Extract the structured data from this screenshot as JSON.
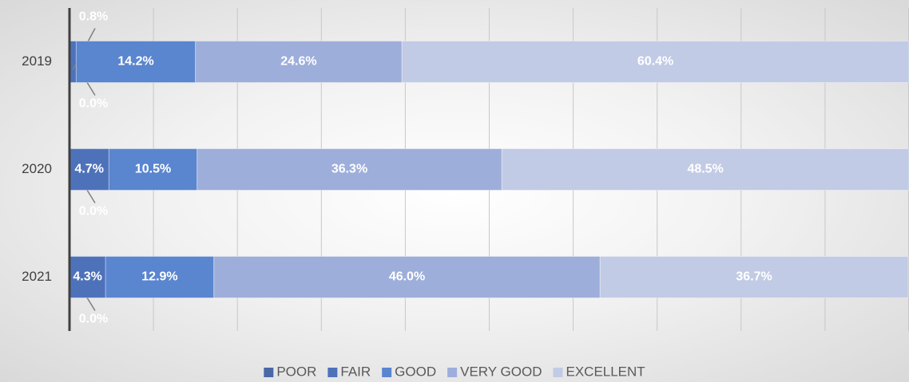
{
  "chart_data": {
    "type": "stacked-barh",
    "categories": [
      "2019",
      "2020",
      "2021"
    ],
    "series": [
      {
        "name": "POOR",
        "color": "#4a67a6",
        "values": [
          0.0,
          0.0,
          0.0
        ],
        "value_labels": [
          "0.0%",
          "0.0%",
          "0.0%"
        ]
      },
      {
        "name": "FAIR",
        "color": "#4e72ba",
        "values": [
          0.8,
          4.7,
          4.3
        ],
        "value_labels": [
          "0.8%",
          "4.7%",
          "4.3%"
        ]
      },
      {
        "name": "GOOD",
        "color": "#5a85cf",
        "values": [
          14.2,
          10.5,
          12.9
        ],
        "value_labels": [
          "14.2%",
          "10.5%",
          "12.9%"
        ]
      },
      {
        "name": "VERY GOOD",
        "color": "#9eaedb",
        "values": [
          24.6,
          36.3,
          46.0
        ],
        "value_labels": [
          "24.6%",
          "36.3%",
          "46.0%"
        ]
      },
      {
        "name": "EXCELLENT",
        "color": "#c2cbe5",
        "values": [
          60.4,
          48.5,
          36.7
        ],
        "value_labels": [
          "60.4%",
          "48.5%",
          "36.7%"
        ]
      }
    ],
    "xlim": [
      0,
      100
    ],
    "xticks": [
      0,
      10,
      20,
      30,
      40,
      50,
      60,
      70,
      80,
      90,
      100
    ],
    "grid": true,
    "legend": "bottom"
  }
}
